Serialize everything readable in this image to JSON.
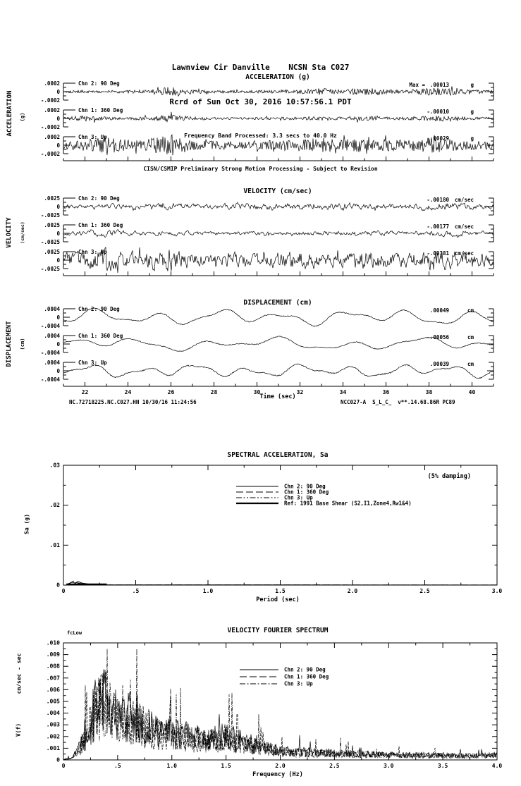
{
  "header": {
    "line1": "Lawnview Cir Danville    NCSN Sta C027",
    "line2": "Rcrd of Sun Oct 30, 2016 10:57:56.1 PDT",
    "line3": "Frequency Band Processed: 3.3 secs to 40.0 Hz",
    "line4": "CISN/CSMIP Preliminary Strong Motion Processing - Subject to Revision"
  },
  "footer": {
    "left": "NC.72718225.NC.C027.HN 10/30/16 11:24:56",
    "right": "NCC027-A  S_L_C_  v**.14.68.86R PC89"
  },
  "time_axis": {
    "label": "Time (sec)",
    "ticks": [
      "22",
      "24",
      "26",
      "28",
      "30",
      "32",
      "34",
      "36",
      "38",
      "40"
    ],
    "values": [
      22,
      24,
      26,
      28,
      30,
      32,
      34,
      36,
      38,
      40
    ],
    "range": [
      21,
      41
    ]
  },
  "groups": [
    {
      "title": "ACCELERATION (g)",
      "side_label": "ACCELERATION",
      "side_unit": "(g)",
      "scale_top": ".0002",
      "scale_zero": "0",
      "scale_bottom": "-.0002",
      "channels": [
        {
          "label": "Chn 2: 90 Deg",
          "max_prefix": "Max =",
          "max_value": ".00013",
          "unit": "g"
        },
        {
          "label": "Chn 1: 360 Deg",
          "max_value": "-.00010",
          "unit": "g"
        },
        {
          "label": "Chn 3: Up",
          "max_value": "-.00029",
          "unit": "g"
        }
      ]
    },
    {
      "title": "VELOCITY (cm/sec)",
      "side_label": "VELOCITY",
      "side_unit": "(cm/sec)",
      "scale_top": ".0025",
      "scale_zero": "0",
      "scale_bottom": "-.0025",
      "channels": [
        {
          "label": "Chn 2: 90 Deg",
          "max_value": "-.00180",
          "unit": "cm/sec"
        },
        {
          "label": "Chn 1: 360 Deg",
          "max_value": "-.00177",
          "unit": "cm/sec"
        },
        {
          "label": "Chn 3: Up",
          "max_value": "-.00381",
          "unit": "cm/sec"
        }
      ]
    },
    {
      "title": "DISPLACEMENT (cm)",
      "side_label": "DISPLACEMENT",
      "side_unit": "(cm)",
      "scale_top": ".0004",
      "scale_zero": "0",
      "scale_bottom": "-.0004",
      "channels": [
        {
          "label": "Chn 2: 90 Deg",
          "max_value": ".00049",
          "unit": "cm"
        },
        {
          "label": "Chn 1: 360 Deg",
          "max_value": "-.00056",
          "unit": "cm"
        },
        {
          "label": "Chn 3: Up",
          "max_value": ".00039",
          "unit": "cm"
        }
      ]
    }
  ],
  "sa_chart": {
    "title": "SPECTRAL ACCELERATION, Sa",
    "damping_note": "(5% damping)",
    "ylabel": "Sa (g)",
    "xlabel": "Period (sec)",
    "yticks": [
      {
        "value": 0.03,
        "label": ".03"
      },
      {
        "value": 0.02,
        "label": ".02"
      },
      {
        "value": 0.01,
        "label": ".01"
      },
      {
        "value": 0,
        "label": "0"
      }
    ],
    "xticks": [
      {
        "value": 0,
        "label": "0"
      },
      {
        "value": 0.5,
        "label": ".5"
      },
      {
        "value": 1.0,
        "label": "1.0"
      },
      {
        "value": 1.5,
        "label": "1.5"
      },
      {
        "value": 2.0,
        "label": "2.0"
      },
      {
        "value": 2.5,
        "label": "2.5"
      },
      {
        "value": 3.0,
        "label": "3.0"
      }
    ],
    "legend": [
      {
        "label": "Chn 2: 90 Deg",
        "style": "solid"
      },
      {
        "label": "Chn 1: 360 Deg",
        "style": "dash"
      },
      {
        "label": "Chn 3: Up",
        "style": "dashdotdot"
      },
      {
        "label": "Ref: 1991 Base Shear (S2,I1,Zone4,Rw1&4)",
        "style": "thick"
      }
    ]
  },
  "fourier_chart": {
    "title": "VELOCITY FOURIER SPECTRUM",
    "corner_label": "fcLow",
    "ylabel_units": "cm/sec - sec",
    "ylabel": "V(f)",
    "xlabel": "Frequency (Hz)",
    "yticks": [
      {
        "value": 0.01,
        "label": ".010"
      },
      {
        "value": 0.009,
        "label": ".009"
      },
      {
        "value": 0.008,
        "label": ".008"
      },
      {
        "value": 0.007,
        "label": ".007"
      },
      {
        "value": 0.006,
        "label": ".006"
      },
      {
        "value": 0.005,
        "label": ".005"
      },
      {
        "value": 0.004,
        "label": ".004"
      },
      {
        "value": 0.003,
        "label": ".003"
      },
      {
        "value": 0.002,
        "label": ".002"
      },
      {
        "value": 0.001,
        "label": ".001"
      },
      {
        "value": 0,
        "label": "0"
      }
    ],
    "xticks": [
      {
        "value": 0,
        "label": "0"
      },
      {
        "value": 0.5,
        "label": ".5"
      },
      {
        "value": 1.0,
        "label": "1.0"
      },
      {
        "value": 1.5,
        "label": "1.5"
      },
      {
        "value": 2.0,
        "label": "2.0"
      },
      {
        "value": 2.5,
        "label": "2.5"
      },
      {
        "value": 3.0,
        "label": "3.0"
      },
      {
        "value": 3.5,
        "label": "3.5"
      },
      {
        "value": 4.0,
        "label": "4.0"
      }
    ],
    "legend": [
      {
        "label": "Chn 2: 90 Deg",
        "style": "solid"
      },
      {
        "label": "Chn 1: 360 Deg",
        "style": "dash"
      },
      {
        "label": "Chn 3: Up",
        "style": "dashdot"
      }
    ]
  },
  "chart_data": [
    {
      "id": "acceleration",
      "type": "line",
      "title": "ACCELERATION (g)",
      "xlabel": "Time (sec)",
      "x_range": [
        21,
        41
      ],
      "units": "g",
      "ylim_per_trace": [
        -0.0002,
        0.0002
      ],
      "series": [
        {
          "name": "Chn 2: 90 Deg",
          "peak": 0.00013,
          "base_amp": 5e-05,
          "seed": 101,
          "smooth": 0,
          "envelope": [
            0.6,
            0.7,
            0.6,
            0.8,
            1.0,
            2.4,
            1.0,
            0.7,
            0.6,
            0.7,
            0.8,
            1.0,
            1.6,
            1.0,
            1.9,
            1.1,
            0.8,
            1.8,
            2.0,
            1.1,
            0.8
          ]
        },
        {
          "name": "Chn 1: 360 Deg",
          "peak": -0.0001,
          "base_amp": 4.2e-05,
          "seed": 102,
          "smooth": 0,
          "envelope": [
            0.8,
            1.6,
            0.9,
            0.8,
            1.0,
            2.2,
            0.9,
            0.7,
            0.6,
            0.7,
            0.7,
            0.9,
            1.2,
            0.8,
            1.4,
            0.9,
            0.8,
            1.5,
            1.6,
            0.9,
            0.7
          ]
        },
        {
          "name": "Chn 3: Up",
          "peak": -0.00029,
          "base_amp": 0.0001,
          "seed": 103,
          "smooth": 0,
          "envelope": [
            1.0,
            1.4,
            2.0,
            1.2,
            1.6,
            2.6,
            1.2,
            1.0,
            0.9,
            1.0,
            1.2,
            1.5,
            1.8,
            1.2,
            2.2,
            1.4,
            1.1,
            2.0,
            1.6,
            1.2,
            1.0
          ]
        }
      ]
    },
    {
      "id": "velocity",
      "type": "line",
      "title": "VELOCITY (cm/sec)",
      "xlabel": "Time (sec)",
      "x_range": [
        21,
        41
      ],
      "units": "cm/sec",
      "ylim_per_trace": [
        -0.0025,
        0.0025
      ],
      "series": [
        {
          "name": "Chn 2: 90 Deg",
          "peak": -0.0018,
          "base_amp": 0.0013,
          "seed": 201,
          "smooth": 0.62,
          "envelope": [
            1.0,
            0.9,
            1.0,
            1.1,
            1.2,
            1.4,
            1.1,
            1.0,
            1.3,
            1.5,
            1.2,
            1.0,
            1.4,
            1.6,
            1.2,
            1.1,
            1.5,
            1.3,
            1.6,
            1.2,
            1.0
          ]
        },
        {
          "name": "Chn 1: 360 Deg",
          "peak": -0.00177,
          "base_amp": 0.0011,
          "seed": 202,
          "smooth": 0.62,
          "envelope": [
            1.0,
            1.4,
            1.8,
            1.1,
            1.0,
            1.2,
            1.0,
            0.9,
            1.0,
            1.1,
            1.0,
            1.2,
            1.3,
            1.0,
            1.2,
            1.0,
            1.1,
            1.3,
            1.5,
            1.1,
            0.9
          ]
        },
        {
          "name": "Chn 3: Up",
          "peak": -0.00381,
          "base_amp": 0.0022,
          "seed": 203,
          "smooth": 0.45,
          "envelope": [
            1.2,
            1.5,
            2.2,
            1.4,
            1.8,
            2.2,
            1.3,
            1.1,
            1.4,
            1.2,
            1.5,
            1.8,
            1.4,
            1.2,
            2.0,
            1.6,
            1.3,
            2.2,
            1.8,
            1.4,
            1.2
          ]
        }
      ]
    },
    {
      "id": "displacement",
      "type": "line",
      "title": "DISPLACEMENT (cm)",
      "xlabel": "Time (sec)",
      "x_range": [
        21,
        41
      ],
      "units": "cm",
      "ylim_per_trace": [
        -0.0004,
        0.0004
      ],
      "series": [
        {
          "name": "Chn 2: 90 Deg",
          "peak": 0.00049,
          "noise": 2e-05,
          "seed": 301,
          "components": [
            {
              "period": 2.9,
              "amp": 0.00022
            },
            {
              "period": 1.6,
              "amp": 0.0001
            },
            {
              "period": 6.5,
              "amp": 0.00012
            }
          ]
        },
        {
          "name": "Chn 1: 360 Deg",
          "peak": -0.00056,
          "noise": 2e-05,
          "seed": 302,
          "components": [
            {
              "period": 3.3,
              "amp": 0.00016
            },
            {
              "period": 1.8,
              "amp": 8e-05
            },
            {
              "period": 7.5,
              "amp": 0.00014
            }
          ]
        },
        {
          "name": "Chn 3: Up",
          "peak": 0.00039,
          "noise": 2.5e-05,
          "seed": 303,
          "components": [
            {
              "period": 2.4,
              "amp": 0.00018
            },
            {
              "period": 1.3,
              "amp": 8e-05
            },
            {
              "period": 5.5,
              "amp": 0.0001
            }
          ]
        }
      ]
    },
    {
      "id": "spectral_acceleration",
      "type": "line",
      "title": "SPECTRAL ACCELERATION, Sa",
      "xlabel": "Period (sec)",
      "ylabel": "Sa (g)",
      "xlim": [
        0,
        3
      ],
      "ylim": [
        0,
        0.03
      ],
      "damping": "5%",
      "series": [
        {
          "name": "Chn 2: 90 Deg",
          "points": [
            [
              0.03,
              0.0002
            ],
            [
              0.06,
              0.0008
            ],
            [
              0.08,
              0.0005
            ],
            [
              0.1,
              0.0009
            ],
            [
              0.13,
              0.0005
            ],
            [
              0.17,
              0.0003
            ],
            [
              0.22,
              0.0001
            ],
            [
              0.3,
              5e-05
            ],
            [
              3.0,
              3e-05
            ]
          ]
        },
        {
          "name": "Chn 1: 360 Deg",
          "points": [
            [
              0.03,
              0.0002
            ],
            [
              0.05,
              0.0006
            ],
            [
              0.07,
              0.001
            ],
            [
              0.09,
              0.0006
            ],
            [
              0.12,
              0.0004
            ],
            [
              0.16,
              0.0002
            ],
            [
              0.25,
              6e-05
            ],
            [
              3.0,
              3e-05
            ]
          ]
        },
        {
          "name": "Chn 3: Up",
          "points": [
            [
              0.03,
              0.0003
            ],
            [
              0.06,
              0.0007
            ],
            [
              0.09,
              0.0004
            ],
            [
              0.12,
              0.0003
            ],
            [
              0.18,
              0.0001
            ],
            [
              0.3,
              4e-05
            ],
            [
              3.0,
              2e-05
            ]
          ]
        },
        {
          "name": "Ref: 1991 Base Shear (S2,I1,Zone4,Rw1&4)",
          "points": [
            [
              0.02,
              0.0002
            ],
            [
              0.3,
              0.0002
            ]
          ]
        }
      ]
    },
    {
      "id": "velocity_fourier_spectrum",
      "type": "line",
      "title": "VELOCITY FOURIER SPECTRUM",
      "xlabel": "Frequency (Hz)",
      "ylabel": "V(f)  cm/sec - sec",
      "xlim": [
        0,
        4
      ],
      "ylim": [
        0,
        0.01
      ],
      "envelope_points": [
        [
          0,
          5e-05
        ],
        [
          0.08,
          0.0002
        ],
        [
          0.15,
          0.0015
        ],
        [
          0.22,
          0.004
        ],
        [
          0.3,
          0.0065
        ],
        [
          0.38,
          0.0075
        ],
        [
          0.45,
          0.006
        ],
        [
          0.55,
          0.005
        ],
        [
          0.65,
          0.0055
        ],
        [
          0.75,
          0.004
        ],
        [
          0.9,
          0.0035
        ],
        [
          1.05,
          0.003
        ],
        [
          1.2,
          0.0028
        ],
        [
          1.35,
          0.0025
        ],
        [
          1.5,
          0.0028
        ],
        [
          1.65,
          0.0022
        ],
        [
          1.8,
          0.0018
        ],
        [
          1.95,
          0.0012
        ],
        [
          2.1,
          0.001
        ],
        [
          2.3,
          0.0009
        ],
        [
          2.5,
          0.0008
        ],
        [
          2.8,
          0.0007
        ],
        [
          3.1,
          0.0006
        ],
        [
          3.4,
          0.0006
        ],
        [
          3.7,
          0.0005
        ],
        [
          4.0,
          0.0006
        ]
      ],
      "series": [
        {
          "name": "Chn 2: 90 Deg",
          "seed": 401,
          "scale": 1.0
        },
        {
          "name": "Chn 1: 360 Deg",
          "seed": 402,
          "scale": 0.95
        },
        {
          "name": "Chn 3: Up",
          "seed": 403,
          "scale": 0.9
        }
      ]
    }
  ]
}
